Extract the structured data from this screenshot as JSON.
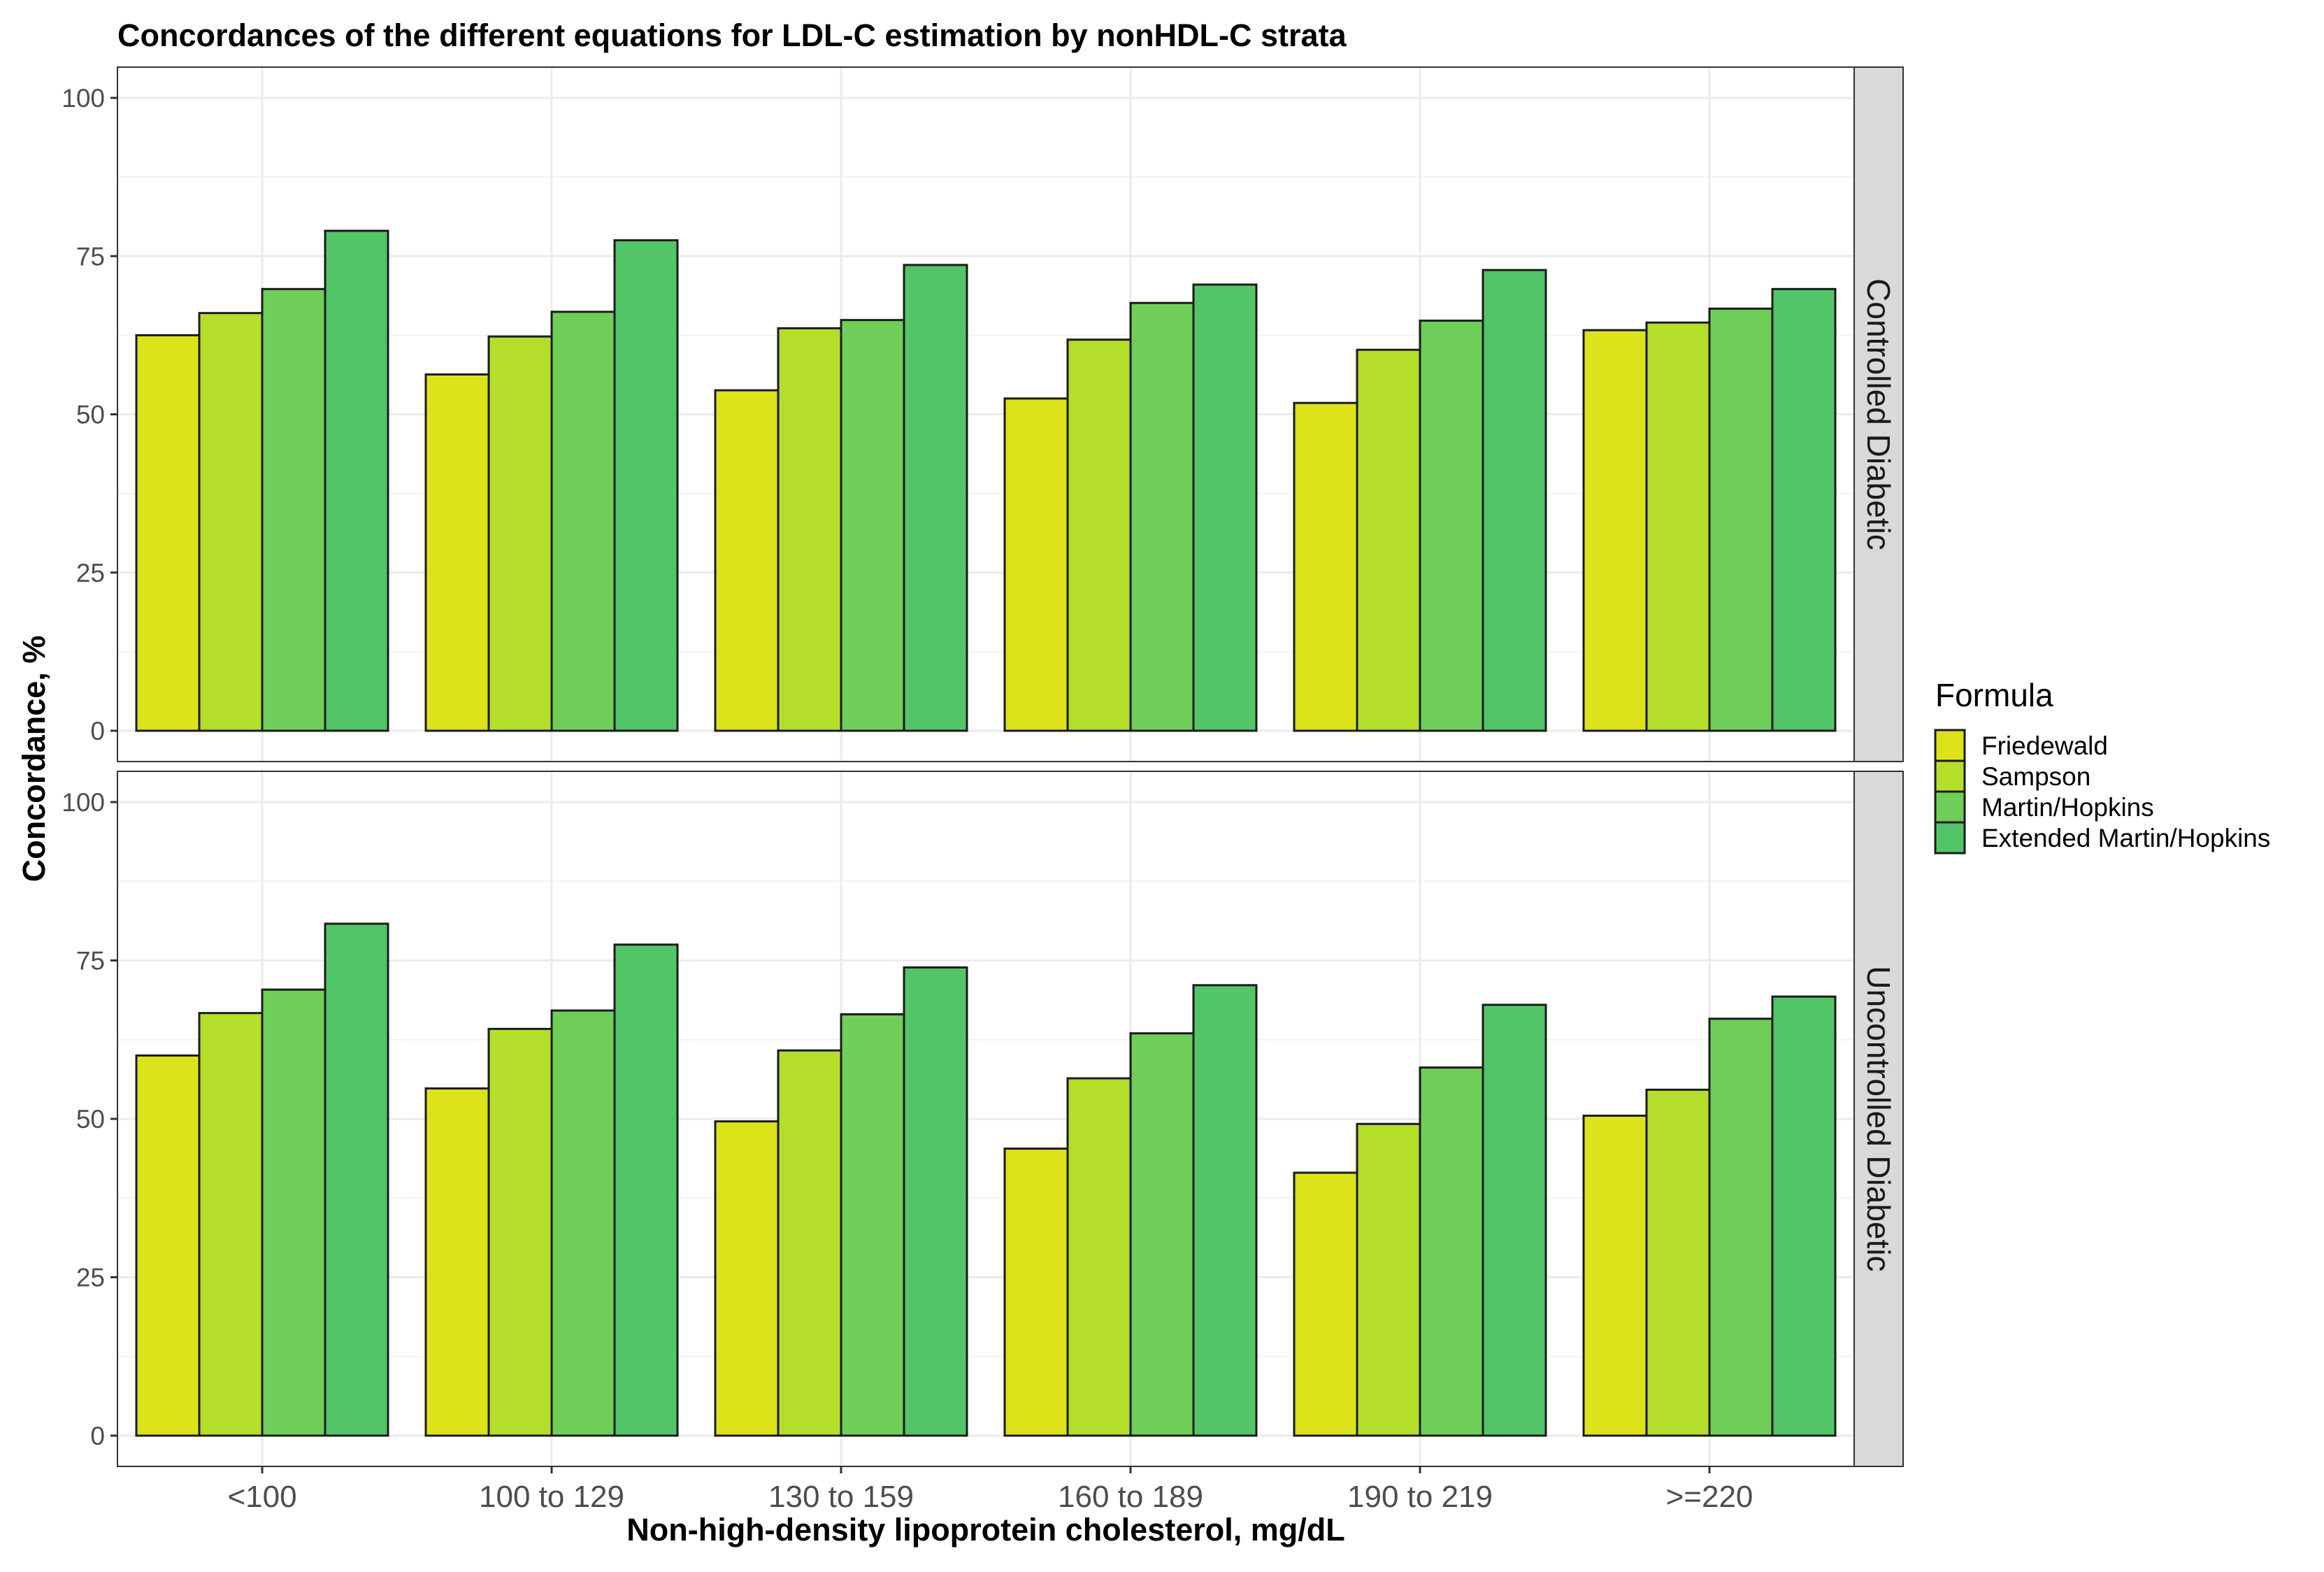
{
  "chart_data": {
    "type": "bar",
    "title": "Concordances of the different equations for LDL-C estimation by nonHDL-C strata",
    "xlabel": "Non-high-density lipoprotein cholesterol, mg/dL",
    "ylabel": "Concordance, %",
    "ylim": [
      0,
      100
    ],
    "yticks": [
      0,
      25,
      50,
      75,
      100
    ],
    "categories": [
      "<100",
      "100 to 129",
      "130 to 159",
      "160 to 189",
      "190 to 219",
      ">=220"
    ],
    "legend_title": "Formula",
    "legend_position": "right",
    "series": [
      {
        "name": "Friedewald",
        "color": "#dce31a"
      },
      {
        "name": "Sampson",
        "color": "#b5de2b"
      },
      {
        "name": "Martin/Hopkins",
        "color": "#6ece58"
      },
      {
        "name": "Extended Martin/Hopkins",
        "color": "#52c569"
      }
    ],
    "panels": [
      {
        "strip": "Controlled Diabetic",
        "values": [
          [
            62.5,
            66.0,
            69.8,
            79.0
          ],
          [
            56.3,
            62.3,
            66.2,
            77.5
          ],
          [
            53.8,
            63.6,
            64.9,
            73.6
          ],
          [
            52.5,
            61.8,
            67.6,
            70.5
          ],
          [
            51.8,
            60.2,
            64.8,
            72.8
          ],
          [
            63.3,
            64.5,
            66.7,
            69.8
          ]
        ]
      },
      {
        "strip": "Uncontrolled Diabetic",
        "values": [
          [
            60.0,
            66.7,
            70.4,
            80.8
          ],
          [
            54.8,
            64.2,
            67.1,
            77.5
          ],
          [
            49.6,
            60.8,
            66.5,
            73.9
          ],
          [
            45.3,
            56.4,
            63.5,
            71.1
          ],
          [
            41.5,
            49.2,
            58.1,
            68.0
          ],
          [
            50.5,
            54.6,
            65.8,
            69.3
          ]
        ]
      }
    ]
  }
}
